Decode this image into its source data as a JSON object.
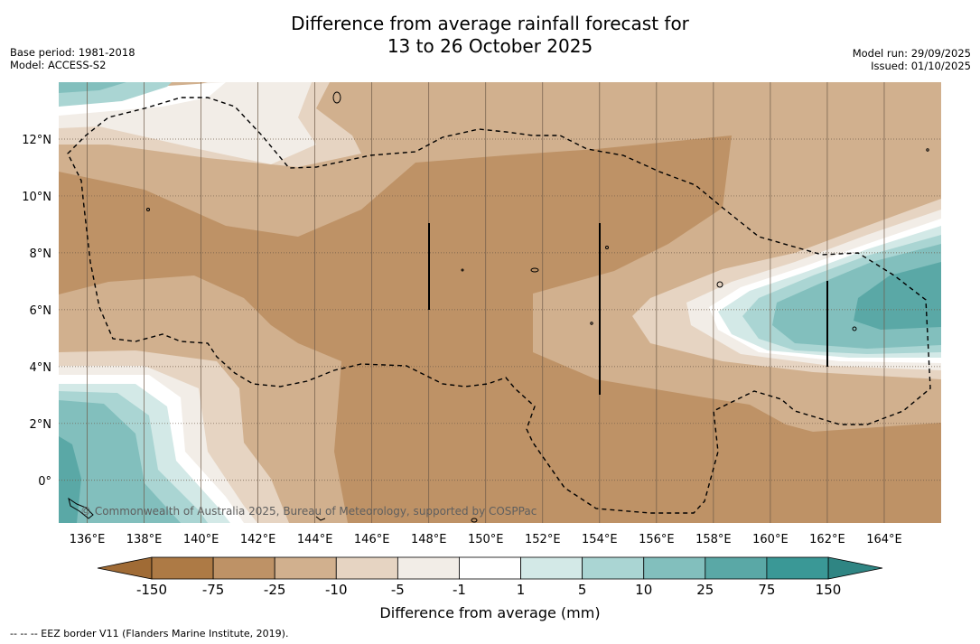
{
  "title": {
    "line1": "Difference from average rainfall forecast for",
    "line2": "13 to 26 October 2025"
  },
  "meta_left": {
    "base_period": "Base period: 1981-2018",
    "model": "Model: ACCESS-S2"
  },
  "meta_right": {
    "model_run": "Model run: 29/09/2025",
    "issued": "Issued: 01/10/2025"
  },
  "map": {
    "lon_range": [
      135,
      166
    ],
    "lat_range": [
      -1.5,
      14
    ],
    "lat_ticks": [
      {
        "lat": 12,
        "label": "12°N"
      },
      {
        "lat": 10,
        "label": "10°N"
      },
      {
        "lat": 8,
        "label": "8°N"
      },
      {
        "lat": 6,
        "label": "6°N"
      },
      {
        "lat": 4,
        "label": "4°N"
      },
      {
        "lat": 2,
        "label": "2°N"
      },
      {
        "lat": 0,
        "label": "0°"
      }
    ],
    "lon_ticks": [
      {
        "lon": 136,
        "label": "136°E"
      },
      {
        "lon": 138,
        "label": "138°E"
      },
      {
        "lon": 140,
        "label": "140°E"
      },
      {
        "lon": 142,
        "label": "142°E"
      },
      {
        "lon": 144,
        "label": "144°E"
      },
      {
        "lon": 146,
        "label": "146°E"
      },
      {
        "lon": 148,
        "label": "148°E"
      },
      {
        "lon": 150,
        "label": "150°E"
      },
      {
        "lon": 152,
        "label": "152°E"
      },
      {
        "lon": 154,
        "label": "154°E"
      },
      {
        "lon": 156,
        "label": "156°E"
      },
      {
        "lon": 158,
        "label": "158°E"
      },
      {
        "lon": 160,
        "label": "160°E"
      },
      {
        "lon": 162,
        "label": "162°E"
      },
      {
        "lon": 164,
        "label": "164°E"
      }
    ],
    "copyright": "© Commonwealth of Australia 2025, Bureau of Meteorology, supported by COSPPac"
  },
  "colorbar": {
    "title": "Difference from average (mm)",
    "tick_labels": [
      "-150",
      "-75",
      "-25",
      "-10",
      "-5",
      "-1",
      "1",
      "5",
      "10",
      "25",
      "75",
      "150"
    ],
    "colors": {
      "under": "#a06b35",
      "c0": "#ad7a45",
      "c1": "#be9266",
      "c2": "#d1b08e",
      "c3": "#e6d4c2",
      "c4": "#f2ede7",
      "c5": "#ffffff",
      "c6": "#d3e9e7",
      "c7": "#aad5d3",
      "c8": "#82bfbd",
      "c9": "#5aa8a6",
      "c10": "#3a9896",
      "over": "#2f8583"
    }
  },
  "footnote": "--  --  -- EEZ border V11 (Flanders Marine Institute, 2019)."
}
